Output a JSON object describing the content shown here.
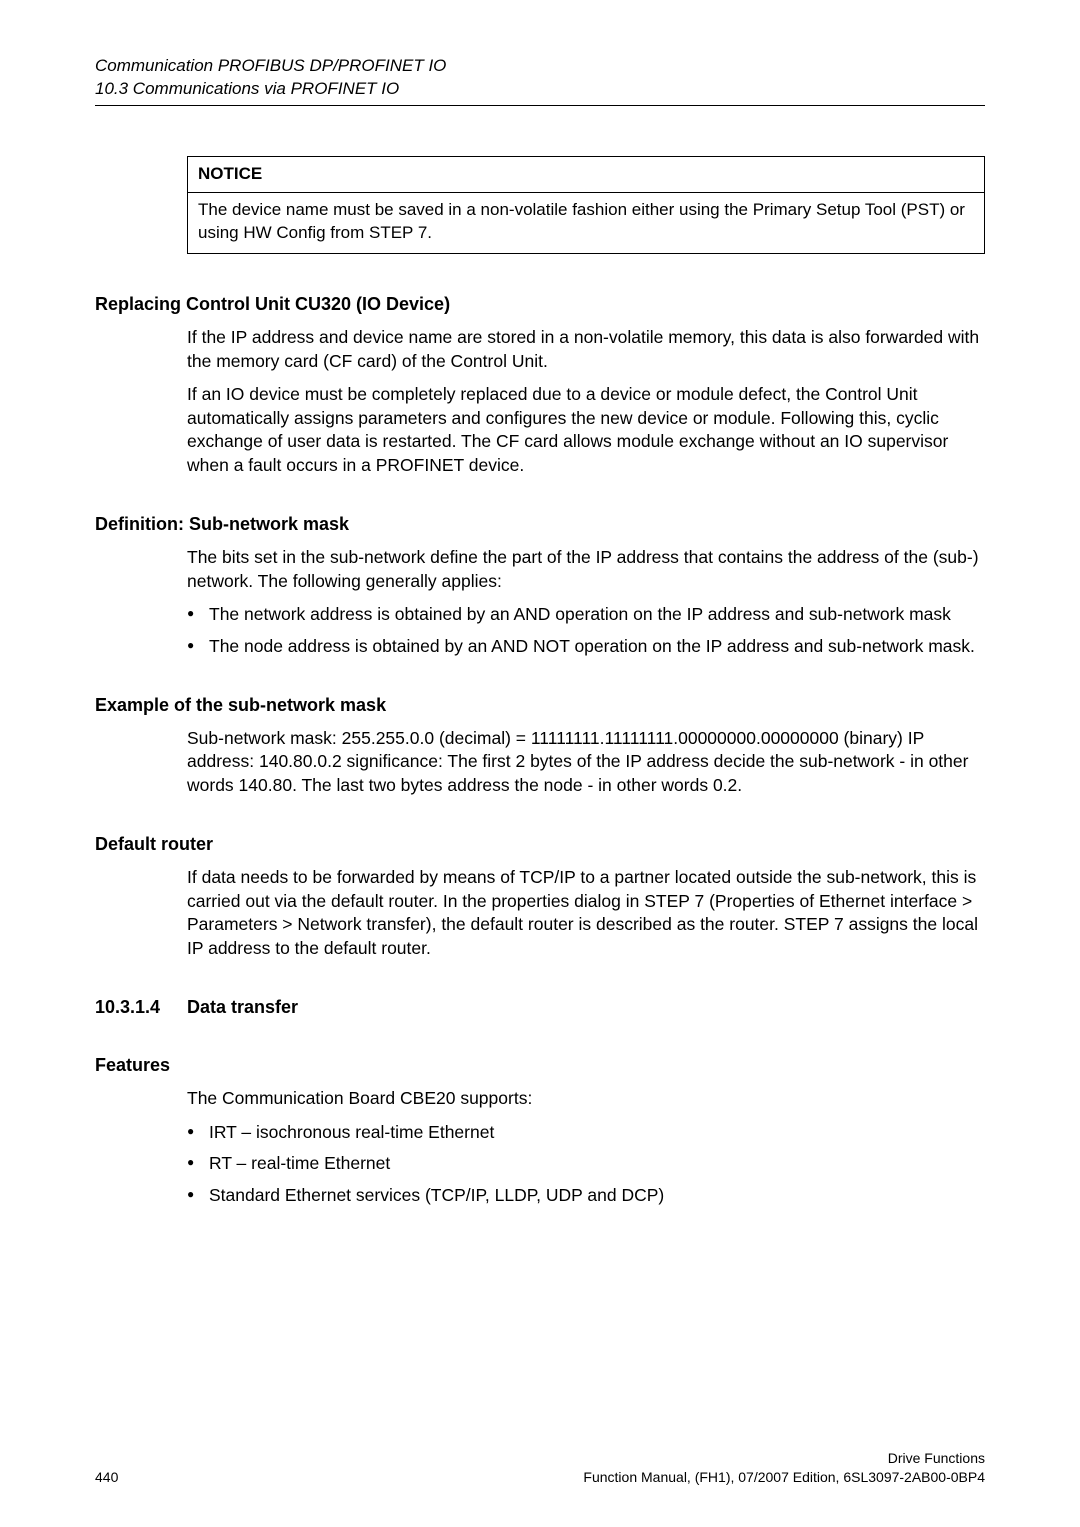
{
  "header": {
    "chapter_title": "Communication PROFIBUS DP/PROFINET IO",
    "section_title": "10.3 Communications via PROFINET IO"
  },
  "notice": {
    "heading": "NOTICE",
    "body": "The device name must be saved in a non-volatile fashion either using the Primary Setup Tool (PST) or using HW Config from STEP 7."
  },
  "replacing": {
    "heading": "Replacing Control Unit CU320 (IO Device)",
    "p1": "If the IP address and device name are stored in a non-volatile memory, this data is also forwarded with the memory card (CF card) of the Control Unit.",
    "p2": "If an IO device must be completely replaced due to a device or module defect, the Control Unit automatically assigns parameters and configures the new device or module. Following this, cyclic exchange of user data is restarted. The CF card allows module exchange without an IO supervisor when a fault occurs in a PROFINET device."
  },
  "defmask": {
    "heading": "Definition: Sub-network mask",
    "p1": "The bits set in the sub-network define the part of the IP address that contains the address of the (sub-) network. The following generally applies:",
    "b1": "The network address is obtained by an AND operation on the IP address and sub-network mask",
    "b2": "The node address is obtained by an AND NOT operation on the IP address and sub-network mask."
  },
  "example": {
    "heading": "Example of the sub-network mask",
    "p1": "Sub-network mask: 255.255.0.0 (decimal) = 11111111.11111111.00000000.00000000 (binary) IP address: 140.80.0.2 significance: The first 2 bytes of the IP address decide the sub-network - in other words 140.80. The last two bytes address the node - in other words 0.2."
  },
  "router": {
    "heading": "Default router",
    "p1": "If data needs to be forwarded by means of TCP/IP to a partner located outside the sub-network, this is carried out via the default router. In the properties dialog in STEP 7 (Properties of Ethernet interface > Parameters > Network transfer), the default router is described as the router. STEP 7 assigns the local IP address to the default router."
  },
  "datatransfer": {
    "number": "10.3.1.4",
    "title": "Data transfer"
  },
  "features": {
    "heading": "Features",
    "intro": "The Communication Board CBE20 supports:",
    "b1": "IRT – isochronous real-time Ethernet",
    "b2": "RT – real-time Ethernet",
    "b3": "Standard Ethernet services (TCP/IP, LLDP, UDP and DCP)"
  },
  "footer": {
    "page_number": "440",
    "right_line1": "Drive Functions",
    "right_line2": "Function Manual, (FH1), 07/2007 Edition, 6SL3097-2AB00-0BP4"
  }
}
